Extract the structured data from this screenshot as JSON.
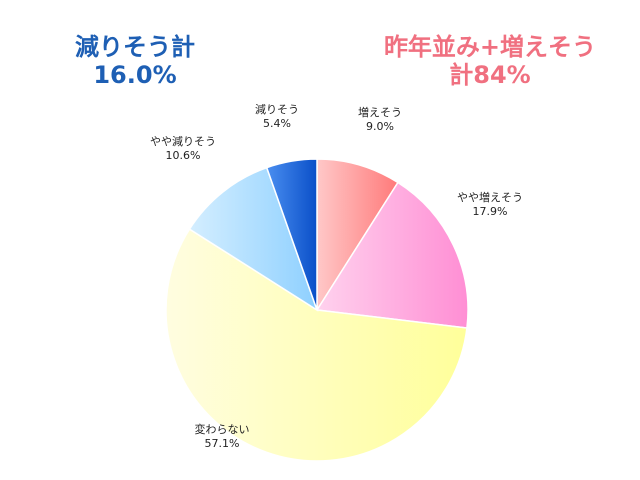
{
  "headline_decrease": {
    "label": "減りそう計",
    "value": "16.0%",
    "color": "#1e5fb4"
  },
  "headline_increase": {
    "label": "昨年並み+増えそう",
    "value": "計84%",
    "color": "#f07080"
  },
  "chart_data": {
    "type": "pie",
    "start_angle_deg": 0,
    "direction": "clockwise",
    "slices": [
      {
        "name": "増えそう",
        "value": 9.0,
        "label": "9.0%",
        "color_light": "#ffc8c8",
        "color_dark": "#ff7a7a"
      },
      {
        "name": "やや増えそう",
        "value": 17.9,
        "label": "17.9%",
        "color_light": "#ffd2ee",
        "color_dark": "#ff8ed4"
      },
      {
        "name": "変わらない",
        "value": 57.1,
        "label": "57.1%",
        "color_light": "#fffde0",
        "color_dark": "#ffff9a"
      },
      {
        "name": "やや減りそう",
        "value": 10.6,
        "label": "10.6%",
        "color_light": "#d4eeff",
        "color_dark": "#8ed0ff"
      },
      {
        "name": "減りそう",
        "value": 5.4,
        "label": "5.4%",
        "color_light": "#4a8ef0",
        "color_dark": "#0a4fc8"
      }
    ]
  }
}
